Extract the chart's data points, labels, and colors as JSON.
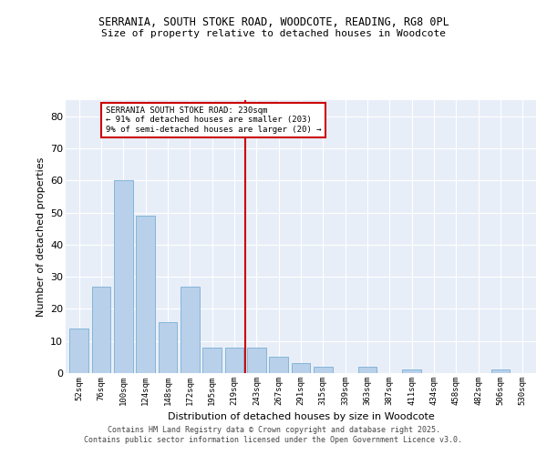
{
  "title1": "SERRANIA, SOUTH STOKE ROAD, WOODCOTE, READING, RG8 0PL",
  "title2": "Size of property relative to detached houses in Woodcote",
  "xlabel": "Distribution of detached houses by size in Woodcote",
  "ylabel": "Number of detached properties",
  "categories": [
    "52sqm",
    "76sqm",
    "100sqm",
    "124sqm",
    "148sqm",
    "172sqm",
    "195sqm",
    "219sqm",
    "243sqm",
    "267sqm",
    "291sqm",
    "315sqm",
    "339sqm",
    "363sqm",
    "387sqm",
    "411sqm",
    "434sqm",
    "458sqm",
    "482sqm",
    "506sqm",
    "530sqm"
  ],
  "values": [
    14,
    27,
    60,
    49,
    16,
    27,
    8,
    8,
    8,
    5,
    3,
    2,
    0,
    2,
    0,
    1,
    0,
    0,
    0,
    1,
    0
  ],
  "bar_color": "#b8d0ea",
  "bar_edge_color": "#7aafd4",
  "vline_color": "#cc0000",
  "annotation_text": "SERRANIA SOUTH STOKE ROAD: 230sqm\n← 91% of detached houses are smaller (203)\n9% of semi-detached houses are larger (20) →",
  "annotation_box_color": "#ffffff",
  "annotation_box_edge": "#cc0000",
  "ylim": [
    0,
    85
  ],
  "yticks": [
    0,
    10,
    20,
    30,
    40,
    50,
    60,
    70,
    80
  ],
  "background_color": "#e8eef8",
  "footer1": "Contains HM Land Registry data © Crown copyright and database right 2025.",
  "footer2": "Contains public sector information licensed under the Open Government Licence v3.0."
}
